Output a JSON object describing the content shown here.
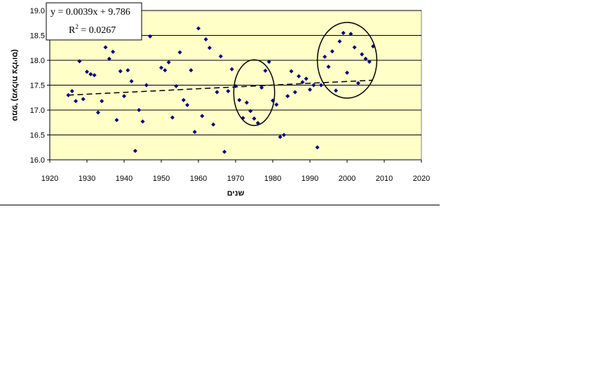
{
  "chart_data": {
    "type": "scatter",
    "title": "",
    "xlabel": "שנים",
    "ylabel": "טמפ' (מעלות צלזיוס)",
    "xlim": [
      1920,
      2020
    ],
    "ylim": [
      16.0,
      19.0
    ],
    "x_ticks": [
      "1920",
      "1930",
      "1940",
      "1950",
      "1960",
      "1970",
      "1980",
      "1990",
      "2000",
      "2010",
      "2020"
    ],
    "y_ticks": [
      "16.0",
      "16.5",
      "17.0",
      "17.5",
      "18.0",
      "18.5",
      "19.0"
    ],
    "grid": "horizontal",
    "plot_background": "#ffffc8",
    "marker_color": "#000080",
    "series": [
      {
        "x": [
          1925,
          1926,
          1927,
          1928,
          1929,
          1930,
          1931,
          1932,
          1933,
          1934,
          1935,
          1936,
          1937,
          1938,
          1939,
          1940,
          1941,
          1942,
          1943,
          1944,
          1945,
          1946,
          1947,
          1950,
          1951,
          1952,
          1953,
          1954,
          1955,
          1956,
          1957,
          1958,
          1959,
          1960,
          1961,
          1962,
          1963,
          1964,
          1965,
          1966,
          1967,
          1968,
          1969,
          1970,
          1971,
          1972,
          1973,
          1974,
          1975,
          1976,
          1977,
          1978,
          1979,
          1980,
          1981,
          1982,
          1983,
          1984,
          1985,
          1986,
          1987,
          1988,
          1989,
          1990,
          1991,
          1992,
          1993,
          1994,
          1995,
          1996,
          1997,
          1998,
          1999,
          2000,
          2001,
          2002,
          2003,
          2004,
          2005,
          2006,
          2007
        ],
        "y": [
          17.3,
          17.38,
          17.18,
          17.98,
          17.22,
          17.77,
          17.72,
          17.7,
          16.95,
          17.18,
          18.26,
          18.03,
          18.17,
          16.8,
          17.78,
          17.28,
          17.8,
          17.58,
          16.18,
          17.0,
          16.77,
          17.5,
          18.48,
          17.85,
          17.8,
          17.96,
          16.85,
          17.48,
          18.16,
          17.2,
          17.1,
          17.8,
          16.56,
          18.64,
          16.88,
          18.42,
          18.25,
          16.71,
          17.36,
          18.08,
          16.16,
          17.38,
          17.82,
          17.48,
          17.2,
          16.84,
          17.15,
          16.98,
          16.83,
          16.74,
          17.45,
          17.79,
          17.97,
          17.19,
          17.11,
          16.46,
          16.5,
          17.28,
          17.78,
          17.36,
          17.68,
          17.56,
          17.63,
          17.41,
          17.5,
          16.25,
          17.5,
          18.07,
          17.87,
          18.18,
          17.39,
          18.38,
          18.55,
          17.75,
          18.53,
          18.26,
          17.54,
          18.12,
          18.03,
          17.97,
          18.28
        ]
      }
    ],
    "trendline": {
      "style": "dashed",
      "x": [
        1925,
        2007
      ],
      "y": [
        17.3,
        17.6
      ]
    },
    "equation": {
      "line1": "y = 0.0039x + 9.786",
      "r2_prefix": "R",
      "r2_exp": "2",
      "r2_suffix": " = 0.0267"
    },
    "ellipses": [
      {
        "cx": 1975.0,
        "cy": 17.35,
        "rx": 5.5,
        "ry": 0.66
      },
      {
        "cx": 2000.0,
        "cy": 18.0,
        "rx": 8.0,
        "ry": 0.76
      }
    ]
  }
}
